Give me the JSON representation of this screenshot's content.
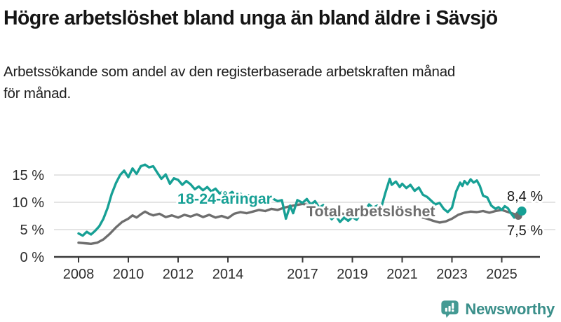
{
  "footer": {
    "brand": "Newsworthy"
  },
  "colors": {
    "youth_line": "#17a095",
    "total_line": "#6e6e6e",
    "grid": "#dcdcdc",
    "axis": "#3a3a3a",
    "tick_text": "#2e2e2e",
    "end_label_text": "#151515",
    "brand": "#3a8f8a",
    "background": "#ffffff"
  },
  "chart_data": {
    "type": "line",
    "title": "Högre arbetslöshet bland unga än bland äldre i Sävsjö",
    "subtitle_lines": [
      "Arbetssökande som andel av den registerbaserade arbetskraften månad",
      "för månad."
    ],
    "unit": "%",
    "grid": true,
    "legend_position": "inline-labels",
    "xlim": [
      2008,
      2025.83
    ],
    "ylim": [
      0,
      17.5
    ],
    "yticks": [
      {
        "value": 0,
        "label": "0 %"
      },
      {
        "value": 5,
        "label": "5 %"
      },
      {
        "value": 10,
        "label": "10 %"
      },
      {
        "value": 15,
        "label": "15 %"
      }
    ],
    "xticks": [
      {
        "year": 2008,
        "label": "2008"
      },
      {
        "year": 2010,
        "label": "2010"
      },
      {
        "year": 2012,
        "label": "2012"
      },
      {
        "year": 2014,
        "label": "2014"
      },
      {
        "year": 2017,
        "label": "2017"
      },
      {
        "year": 2019,
        "label": "2019"
      },
      {
        "year": 2021,
        "label": "2021"
      },
      {
        "year": 2023,
        "label": "2023"
      },
      {
        "year": 2025,
        "label": "2025"
      }
    ],
    "series": [
      {
        "name": "Total arbetslöshet",
        "color": "#6e6e6e",
        "end_label": "7,5 %",
        "end_value": 7.5,
        "points": [
          [
            2008.0,
            2.6
          ],
          [
            2008.25,
            2.5
          ],
          [
            2008.5,
            2.4
          ],
          [
            2008.75,
            2.6
          ],
          [
            2009.0,
            3.2
          ],
          [
            2009.25,
            4.2
          ],
          [
            2009.5,
            5.4
          ],
          [
            2009.75,
            6.4
          ],
          [
            2010.0,
            7.0
          ],
          [
            2010.17,
            7.6
          ],
          [
            2010.33,
            7.2
          ],
          [
            2010.5,
            7.8
          ],
          [
            2010.67,
            8.3
          ],
          [
            2010.83,
            7.9
          ],
          [
            2011.0,
            7.6
          ],
          [
            2011.25,
            7.9
          ],
          [
            2011.5,
            7.3
          ],
          [
            2011.75,
            7.6
          ],
          [
            2012.0,
            7.2
          ],
          [
            2012.25,
            7.7
          ],
          [
            2012.5,
            7.4
          ],
          [
            2012.75,
            7.8
          ],
          [
            2013.0,
            7.3
          ],
          [
            2013.25,
            7.7
          ],
          [
            2013.5,
            7.2
          ],
          [
            2013.75,
            7.5
          ],
          [
            2014.0,
            7.1
          ],
          [
            2014.25,
            7.9
          ],
          [
            2014.5,
            8.2
          ],
          [
            2014.75,
            8.0
          ],
          [
            2015.0,
            8.3
          ],
          [
            2015.25,
            8.6
          ],
          [
            2015.5,
            8.4
          ],
          [
            2015.75,
            8.8
          ],
          [
            2016.0,
            8.6
          ],
          [
            2016.25,
            9.0
          ],
          [
            2016.5,
            9.3
          ],
          [
            2016.75,
            9.5
          ],
          [
            2017.0,
            9.7
          ],
          [
            2017.25,
            9.5
          ],
          [
            2017.5,
            9.2
          ],
          [
            2017.75,
            8.9
          ],
          [
            2018.0,
            8.6
          ],
          [
            2018.25,
            8.3
          ],
          [
            2018.5,
            8.0
          ],
          [
            2018.75,
            7.8
          ],
          [
            2019.0,
            7.6
          ],
          [
            2019.25,
            7.4
          ],
          [
            2019.5,
            7.6
          ],
          [
            2019.75,
            7.8
          ],
          [
            2020.0,
            7.7
          ],
          [
            2020.25,
            8.2
          ],
          [
            2020.5,
            8.8
          ],
          [
            2020.75,
            8.6
          ],
          [
            2021.0,
            8.4
          ],
          [
            2021.25,
            8.0
          ],
          [
            2021.5,
            7.7
          ],
          [
            2021.75,
            7.3
          ],
          [
            2022.0,
            7.0
          ],
          [
            2022.25,
            6.6
          ],
          [
            2022.5,
            6.3
          ],
          [
            2022.75,
            6.5
          ],
          [
            2023.0,
            7.0
          ],
          [
            2023.25,
            7.7
          ],
          [
            2023.5,
            8.1
          ],
          [
            2023.75,
            8.3
          ],
          [
            2024.0,
            8.2
          ],
          [
            2024.25,
            8.4
          ],
          [
            2024.5,
            8.1
          ],
          [
            2024.75,
            8.4
          ],
          [
            2025.0,
            8.6
          ],
          [
            2025.2,
            8.3
          ],
          [
            2025.4,
            8.0
          ],
          [
            2025.6,
            7.7
          ],
          [
            2025.75,
            7.5
          ]
        ]
      },
      {
        "name": "18-24-åringar",
        "color": "#17a095",
        "end_label": "8,4 %",
        "end_value": 8.4,
        "points": [
          [
            2008.0,
            4.3
          ],
          [
            2008.17,
            3.9
          ],
          [
            2008.33,
            4.6
          ],
          [
            2008.5,
            4.1
          ],
          [
            2008.67,
            4.8
          ],
          [
            2008.83,
            5.6
          ],
          [
            2009.0,
            7.0
          ],
          [
            2009.17,
            9.0
          ],
          [
            2009.33,
            11.5
          ],
          [
            2009.5,
            13.5
          ],
          [
            2009.67,
            15.0
          ],
          [
            2009.83,
            15.8
          ],
          [
            2010.0,
            14.6
          ],
          [
            2010.17,
            16.2
          ],
          [
            2010.33,
            15.2
          ],
          [
            2010.5,
            16.6
          ],
          [
            2010.67,
            16.9
          ],
          [
            2010.83,
            16.4
          ],
          [
            2011.0,
            16.6
          ],
          [
            2011.17,
            15.4
          ],
          [
            2011.33,
            14.3
          ],
          [
            2011.5,
            15.1
          ],
          [
            2011.67,
            13.4
          ],
          [
            2011.83,
            14.4
          ],
          [
            2012.0,
            14.1
          ],
          [
            2012.17,
            13.2
          ],
          [
            2012.33,
            13.9
          ],
          [
            2012.5,
            13.3
          ],
          [
            2012.67,
            12.4
          ],
          [
            2012.83,
            12.9
          ],
          [
            2013.0,
            12.2
          ],
          [
            2013.17,
            12.8
          ],
          [
            2013.33,
            12.0
          ],
          [
            2013.5,
            12.5
          ],
          [
            2013.67,
            11.6
          ],
          [
            2013.83,
            12.1
          ],
          [
            2014.0,
            11.4
          ],
          [
            2014.17,
            11.9
          ],
          [
            2014.33,
            11.2
          ],
          [
            2014.5,
            11.6
          ],
          [
            2014.67,
            10.9
          ],
          [
            2014.83,
            11.3
          ],
          [
            2015.0,
            10.7
          ],
          [
            2015.25,
            11.1
          ],
          [
            2015.5,
            10.4
          ],
          [
            2015.75,
            10.8
          ],
          [
            2016.0,
            10.2
          ],
          [
            2016.17,
            10.4
          ],
          [
            2016.33,
            7.0
          ],
          [
            2016.5,
            9.4
          ],
          [
            2016.62,
            8.0
          ],
          [
            2016.79,
            10.4
          ],
          [
            2017.0,
            9.9
          ],
          [
            2017.17,
            10.6
          ],
          [
            2017.33,
            9.6
          ],
          [
            2017.5,
            10.2
          ],
          [
            2017.67,
            9.0
          ],
          [
            2017.83,
            9.5
          ],
          [
            2018.0,
            8.0
          ],
          [
            2018.17,
            6.9
          ],
          [
            2018.33,
            7.6
          ],
          [
            2018.5,
            6.4
          ],
          [
            2018.67,
            7.2
          ],
          [
            2018.83,
            6.6
          ],
          [
            2019.0,
            7.3
          ],
          [
            2019.17,
            6.8
          ],
          [
            2019.33,
            7.8
          ],
          [
            2019.5,
            8.4
          ],
          [
            2019.67,
            9.6
          ],
          [
            2019.83,
            9.0
          ],
          [
            2020.0,
            9.4
          ],
          [
            2020.17,
            9.2
          ],
          [
            2020.33,
            11.8
          ],
          [
            2020.5,
            14.3
          ],
          [
            2020.58,
            13.2
          ],
          [
            2020.75,
            13.8
          ],
          [
            2020.9,
            12.8
          ],
          [
            2021.0,
            13.4
          ],
          [
            2021.17,
            12.6
          ],
          [
            2021.33,
            13.2
          ],
          [
            2021.5,
            12.1
          ],
          [
            2021.67,
            12.7
          ],
          [
            2021.83,
            11.4
          ],
          [
            2022.0,
            11.0
          ],
          [
            2022.17,
            10.3
          ],
          [
            2022.33,
            9.6
          ],
          [
            2022.5,
            9.9
          ],
          [
            2022.67,
            8.8
          ],
          [
            2022.83,
            8.2
          ],
          [
            2023.0,
            9.0
          ],
          [
            2023.17,
            12.0
          ],
          [
            2023.33,
            13.6
          ],
          [
            2023.42,
            13.0
          ],
          [
            2023.5,
            13.9
          ],
          [
            2023.62,
            13.3
          ],
          [
            2023.75,
            14.2
          ],
          [
            2023.87,
            13.6
          ],
          [
            2024.0,
            14.0
          ],
          [
            2024.12,
            13.0
          ],
          [
            2024.25,
            11.2
          ],
          [
            2024.42,
            10.9
          ],
          [
            2024.58,
            9.4
          ],
          [
            2024.75,
            8.8
          ],
          [
            2024.87,
            9.1
          ],
          [
            2025.0,
            8.6
          ],
          [
            2025.12,
            9.3
          ],
          [
            2025.25,
            8.9
          ],
          [
            2025.37,
            8.0
          ],
          [
            2025.5,
            7.2
          ],
          [
            2025.62,
            8.1
          ],
          [
            2025.75,
            8.4
          ]
        ]
      }
    ]
  }
}
